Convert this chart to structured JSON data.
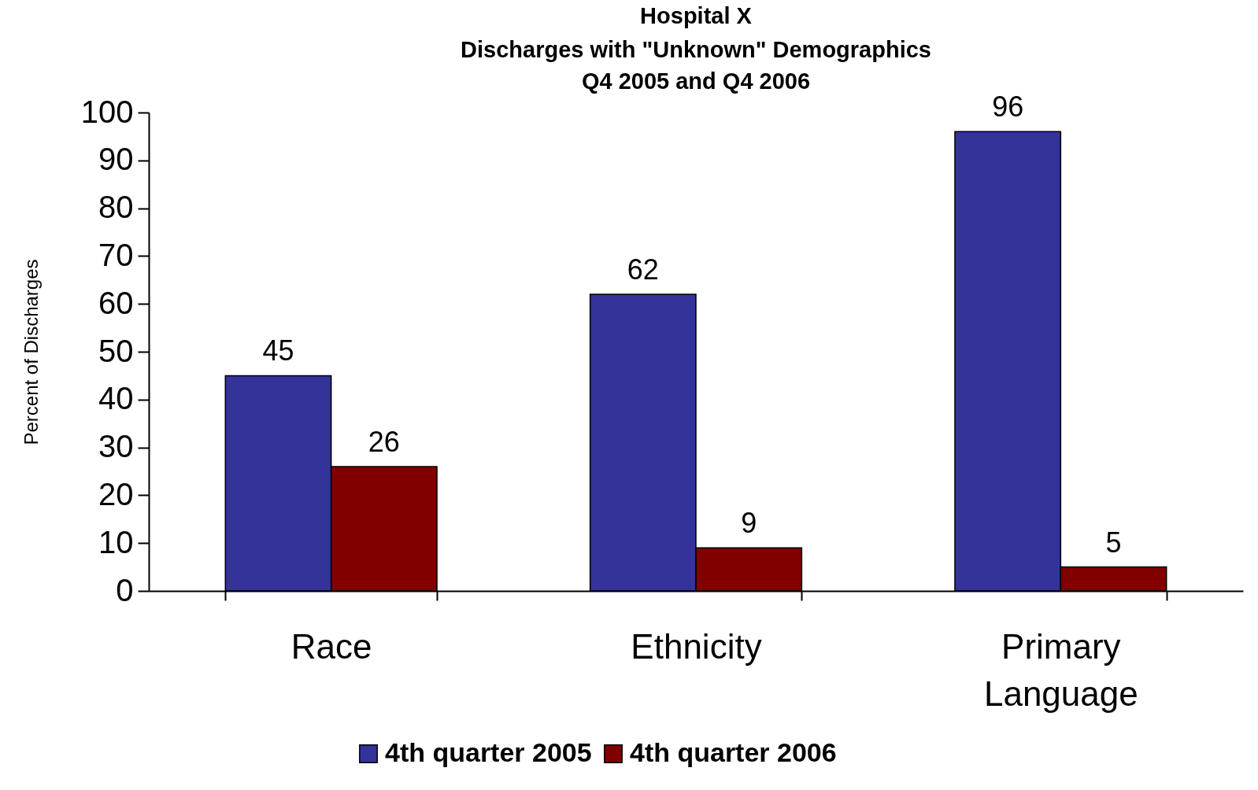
{
  "chart_data": {
    "type": "bar",
    "title": "Hospital X",
    "subtitle": "Discharges with \"Unknown\" Demographics\nQ4 2005 and Q4 2006",
    "ylabel": "Percent of Discharges",
    "categories": [
      "Race",
      "Ethnicity",
      "Primary Language"
    ],
    "series": [
      {
        "name": "4th quarter 2005",
        "color": "#333399",
        "values": [
          45,
          62,
          96
        ]
      },
      {
        "name": "4th quarter 2006",
        "color": "#800000",
        "values": [
          26,
          9,
          5
        ]
      }
    ],
    "ylim": [
      0,
      100
    ],
    "yticks": [
      0,
      10,
      20,
      30,
      40,
      50,
      60,
      70,
      80,
      90,
      100
    ],
    "grid": false,
    "legend": "bottom",
    "data_labels": true
  }
}
